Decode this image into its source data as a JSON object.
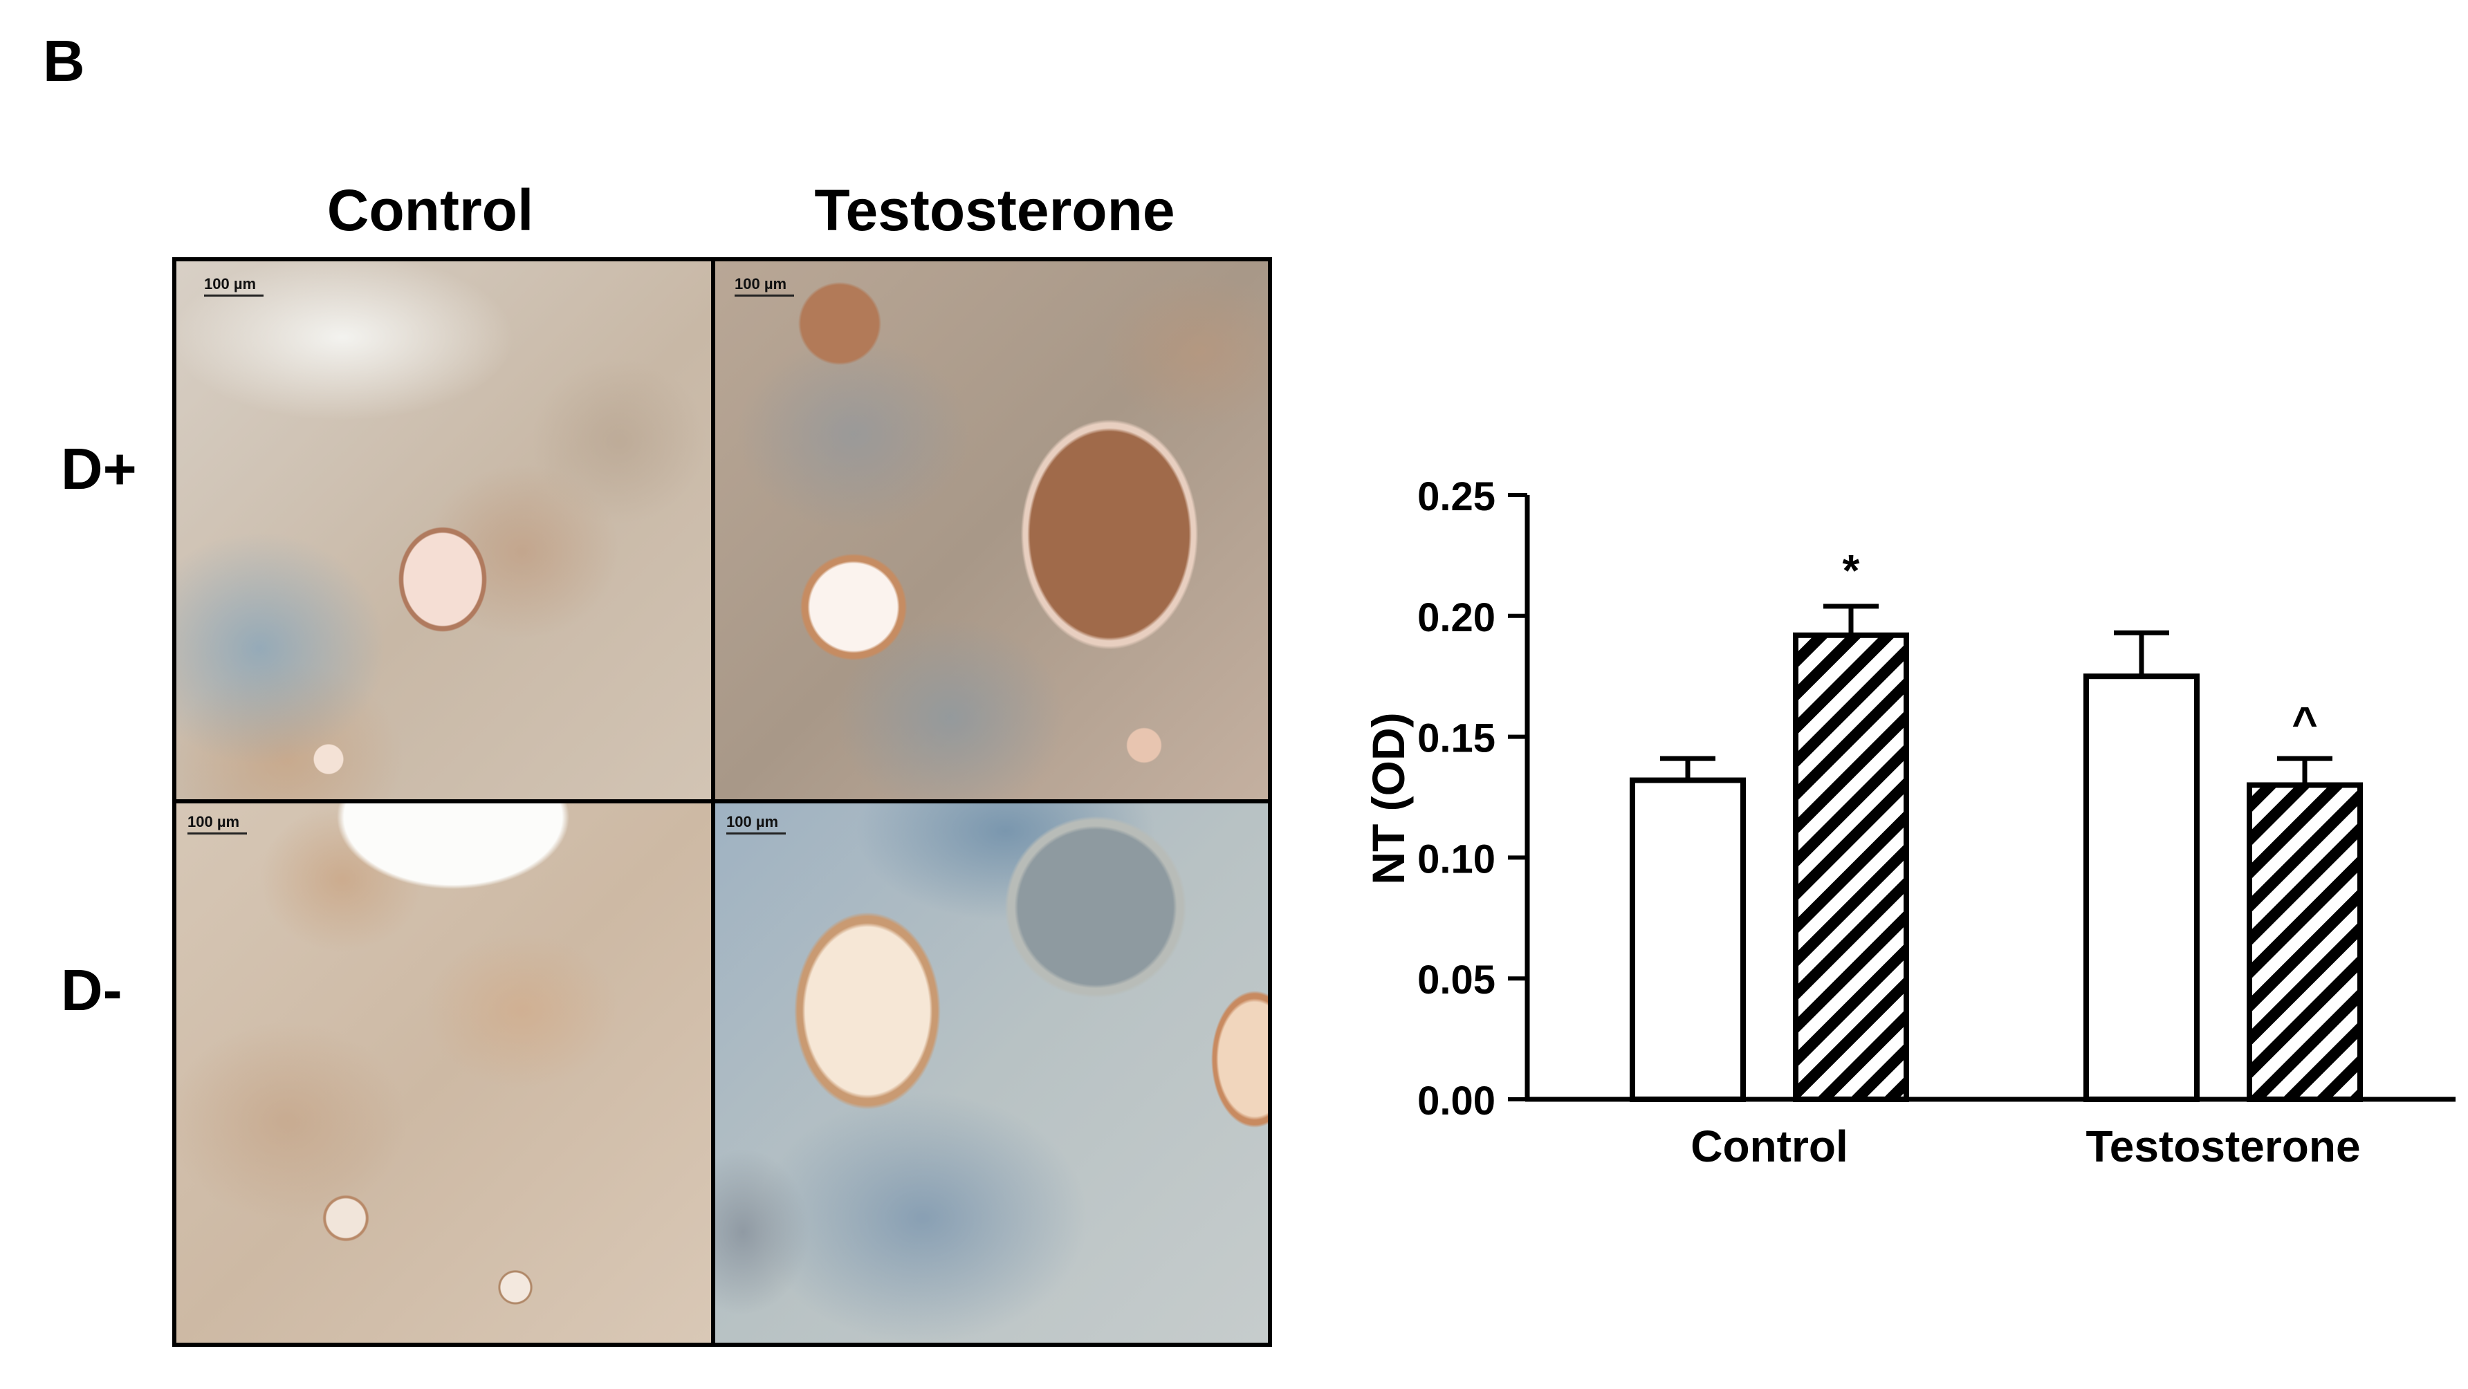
{
  "panel_letter": "B",
  "micrographs": {
    "columns": [
      "Control",
      "Testosterone"
    ],
    "rows": [
      "D+",
      "D-"
    ],
    "scale_bar_label": "100 µm"
  },
  "chart_data": {
    "type": "bar",
    "categories": [
      "Control",
      "Testosterone"
    ],
    "series": [
      {
        "fill": "white",
        "values": [
          0.132,
          0.175
        ],
        "errors": [
          0.009,
          0.018
        ]
      },
      {
        "fill": "hatched",
        "values": [
          0.192,
          0.13
        ],
        "errors": [
          0.012,
          0.011
        ]
      }
    ],
    "annotations": [
      {
        "category": "Control",
        "series": 1,
        "text": "*"
      },
      {
        "category": "Testosterone",
        "series": 1,
        "text": "^"
      }
    ],
    "ylabel": "NT (OD)",
    "ylim": [
      0,
      0.25
    ],
    "yticks": [
      "0.00",
      "0.05",
      "0.10",
      "0.15",
      "0.20",
      "0.25"
    ],
    "grid": false
  }
}
